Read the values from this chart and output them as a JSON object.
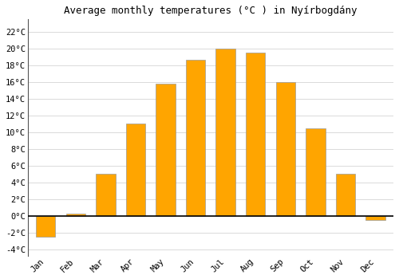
{
  "months": [
    "Jan",
    "Feb",
    "Mar",
    "Apr",
    "May",
    "Jun",
    "Jul",
    "Aug",
    "Sep",
    "Oct",
    "Nov",
    "Dec"
  ],
  "values": [
    -2.5,
    0.3,
    5.0,
    11.0,
    15.8,
    18.6,
    20.0,
    19.5,
    16.0,
    10.5,
    5.0,
    -0.5
  ],
  "bar_color": "#FFA500",
  "bar_edge_color": "#999999",
  "background_color": "#ffffff",
  "grid_color": "#cccccc",
  "title": "Average monthly temperatures (°C ) in Nyírbogdány",
  "title_fontsize": 9,
  "tick_label_fontsize": 7.5,
  "ytick_labels": [
    "-4°C",
    "-2°C",
    "0°C",
    "2°C",
    "4°C",
    "6°C",
    "8°C",
    "10°C",
    "12°C",
    "14°C",
    "16°C",
    "18°C",
    "20°C",
    "22°C"
  ],
  "ytick_values": [
    -4,
    -2,
    0,
    2,
    4,
    6,
    8,
    10,
    12,
    14,
    16,
    18,
    20,
    22
  ],
  "ylim": [
    -4.8,
    23.5
  ],
  "xlim": [
    -0.6,
    11.6
  ],
  "zero_line_color": "#000000",
  "spine_color": "#555555",
  "font_family": "monospace",
  "bar_width": 0.65
}
